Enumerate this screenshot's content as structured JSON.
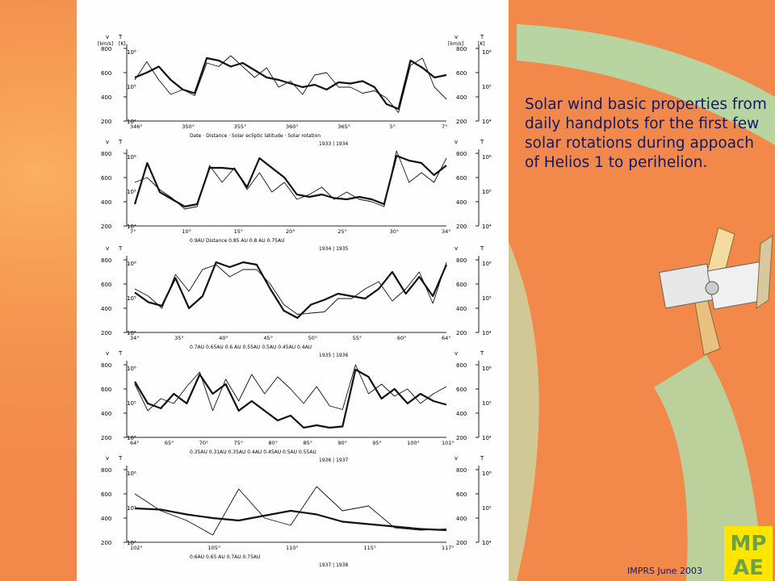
{
  "caption": "Solar wind basic properties from daily handplots for the first few solar rotations during appoach of Helios 1 to perihelion.",
  "footer": "IMPRS June 2003",
  "logo_lines": [
    "MP",
    "AE"
  ],
  "colors": {
    "background": "#f2894a",
    "figure_bg": "#fefefe",
    "text": "#0d1a6e",
    "green_band": "#b8d4a0",
    "logo_yellow": "#ffe600"
  },
  "axis_labels": {
    "v": "v",
    "T": "T",
    "v_unit": "[km/s]",
    "T_unit": "[K]"
  },
  "v_ticks": [
    "800",
    "600",
    "400",
    "200"
  ],
  "T_ticks": [
    "10⁶",
    "10⁵",
    "10⁴"
  ],
  "series_labels": {
    "v": "v",
    "T": "T"
  },
  "panels": [
    {
      "annotation": [
        "346°",
        "350°",
        "355°",
        "360°",
        "365°",
        "5°",
        "7°"
      ],
      "subtitle": "Date · Distance · Solar ecliptic latitude · Solar rotation",
      "extra": "1933 | 1934",
      "v": [
        560,
        600,
        650,
        540,
        460,
        430,
        720,
        700,
        650,
        680,
        620,
        560,
        540,
        510,
        480,
        500,
        460,
        520,
        510,
        530,
        480,
        340,
        300,
        700,
        640,
        560,
        580
      ],
      "T": [
        540,
        690,
        540,
        420,
        460,
        410,
        680,
        650,
        740,
        650,
        560,
        640,
        480,
        530,
        420,
        580,
        600,
        480,
        480,
        430,
        450,
        390,
        270,
        660,
        720,
        480,
        380
      ]
    },
    {
      "annotation": [
        "7°",
        "10°",
        "15°",
        "20°",
        "25°",
        "30°",
        "34°"
      ],
      "subtitle": "0.9AU   Distance   0.85 AU   0.8 AU   0.75AU",
      "extra": "1934 | 1935",
      "v": [
        380,
        720,
        480,
        420,
        360,
        380,
        680,
        680,
        670,
        520,
        760,
        680,
        600,
        460,
        440,
        460,
        430,
        420,
        440,
        420,
        380,
        780,
        740,
        720,
        620,
        700
      ],
      "T": [
        560,
        600,
        500,
        430,
        340,
        360,
        700,
        560,
        680,
        500,
        640,
        480,
        560,
        420,
        460,
        520,
        420,
        480,
        420,
        400,
        360,
        820,
        560,
        640,
        560,
        760
      ]
    },
    {
      "annotation": [
        "34°",
        "35°",
        "40°",
        "45°",
        "50°",
        "55°",
        "60°",
        "64°"
      ],
      "subtitle": "0.7AU   0.65AU   0.6 AU   0.55AU   0.5AU   0.45AU   0.4AU",
      "extra": "1935 | 1936",
      "v": [
        530,
        450,
        420,
        650,
        400,
        500,
        780,
        740,
        780,
        760,
        560,
        380,
        320,
        430,
        470,
        520,
        500,
        480,
        560,
        700,
        520,
        660,
        500,
        760
      ],
      "T": [
        560,
        500,
        400,
        680,
        540,
        720,
        760,
        660,
        720,
        720,
        600,
        430,
        350,
        360,
        370,
        480,
        480,
        560,
        620,
        460,
        560,
        700,
        440,
        780
      ]
    },
    {
      "annotation": [
        "64°",
        "65°",
        "70°",
        "75°",
        "80°",
        "85°",
        "90°",
        "95°",
        "100°",
        "101°"
      ],
      "subtitle": "0.35AU   0.31AU   0.35AU   0.4AU   0.45AU   0.5AU   0.55AU",
      "extra": "1936 | 1937",
      "v": [
        660,
        480,
        440,
        560,
        480,
        720,
        560,
        640,
        420,
        500,
        420,
        340,
        380,
        280,
        300,
        280,
        290,
        760,
        700,
        520,
        600,
        480,
        560,
        500,
        470
      ],
      "T": [
        640,
        420,
        520,
        480,
        620,
        740,
        420,
        680,
        500,
        720,
        560,
        700,
        600,
        480,
        620,
        460,
        430,
        800,
        560,
        640,
        540,
        600,
        480,
        560,
        620
      ]
    },
    {
      "annotation": [
        "102°",
        "105°",
        "110°",
        "115°",
        "117°"
      ],
      "subtitle": "0.6AU   0.65 AU   0.7AU   0.75AU",
      "extra": "1937 | 1938",
      "v": [
        480,
        470,
        430,
        400,
        380,
        420,
        460,
        430,
        370,
        350,
        330,
        310,
        300
      ],
      "T": [
        600,
        460,
        380,
        260,
        640,
        400,
        340,
        660,
        460,
        500,
        320,
        300,
        310
      ]
    }
  ]
}
